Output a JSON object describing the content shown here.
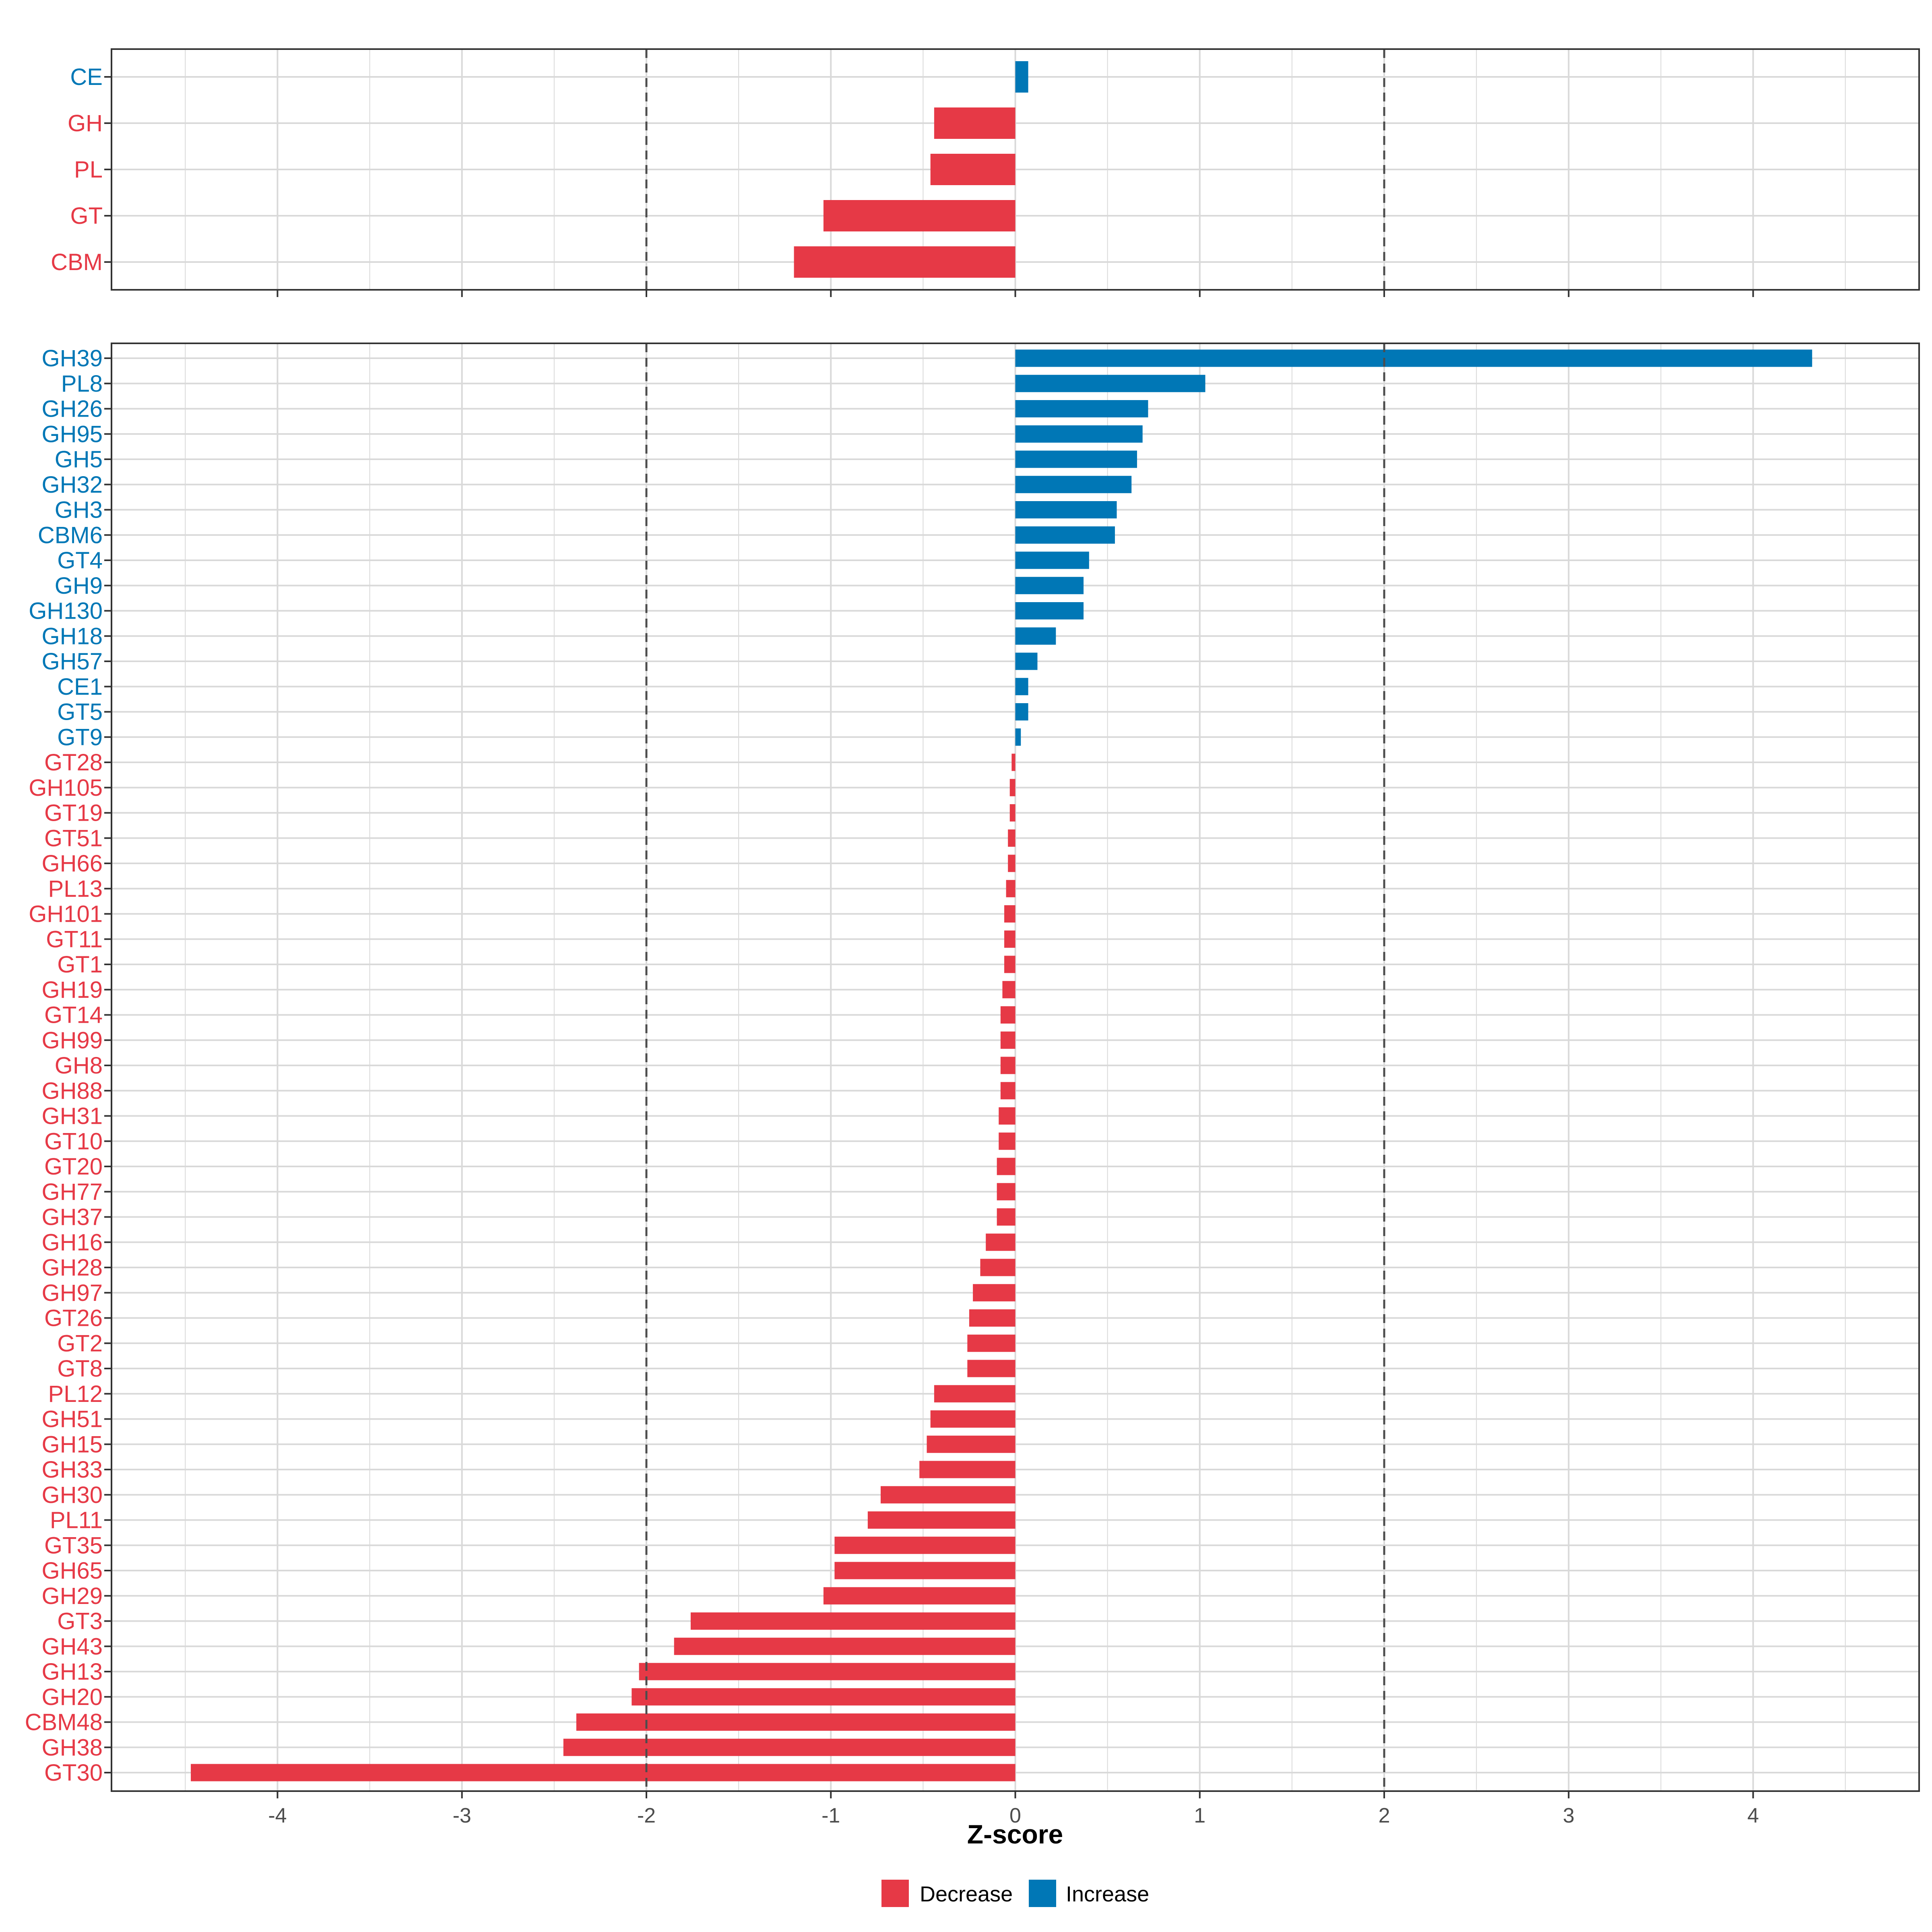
{
  "colors": {
    "decrease": "#E63946",
    "increase": "#0077B6",
    "grid": "#d9d9d9",
    "threshold": "#4d4d4d"
  },
  "chart_data": [
    {
      "type": "bar",
      "orientation": "horizontal",
      "panel": "top",
      "categories": [
        "CE",
        "GH",
        "PL",
        "GT",
        "CBM"
      ],
      "values": [
        0.07,
        -0.44,
        -0.46,
        -1.04,
        -1.2
      ],
      "xlim": [
        -4.9,
        4.9
      ],
      "thresholds": [
        -2,
        2
      ]
    },
    {
      "type": "bar",
      "orientation": "horizontal",
      "panel": "bottom",
      "categories": [
        "GH39",
        "PL8",
        "GH26",
        "GH95",
        "GH5",
        "GH32",
        "GH3",
        "CBM6",
        "GT4",
        "GH9",
        "GH130",
        "GH18",
        "GH57",
        "CE1",
        "GT5",
        "GT9",
        "GT28",
        "GH105",
        "GT19",
        "GT51",
        "GH66",
        "PL13",
        "GH101",
        "GT11",
        "GT1",
        "GH19",
        "GT14",
        "GH99",
        "GH8",
        "GH88",
        "GH31",
        "GT10",
        "GT20",
        "GH77",
        "GH37",
        "GH16",
        "GH28",
        "GH97",
        "GT26",
        "GT2",
        "GT8",
        "PL12",
        "GH51",
        "GH15",
        "GH33",
        "GH30",
        "PL11",
        "GT35",
        "GH65",
        "GH29",
        "GT3",
        "GH43",
        "GH13",
        "GH20",
        "CBM48",
        "GH38",
        "GT30"
      ],
      "values": [
        4.32,
        1.03,
        0.72,
        0.69,
        0.66,
        0.63,
        0.55,
        0.54,
        0.4,
        0.37,
        0.37,
        0.22,
        0.12,
        0.07,
        0.07,
        0.03,
        -0.02,
        -0.03,
        -0.03,
        -0.04,
        -0.04,
        -0.05,
        -0.06,
        -0.06,
        -0.06,
        -0.07,
        -0.08,
        -0.08,
        -0.08,
        -0.08,
        -0.09,
        -0.09,
        -0.1,
        -0.1,
        -0.1,
        -0.16,
        -0.19,
        -0.23,
        -0.25,
        -0.26,
        -0.26,
        -0.44,
        -0.46,
        -0.48,
        -0.52,
        -0.73,
        -0.8,
        -0.98,
        -0.98,
        -1.04,
        -1.76,
        -1.85,
        -2.04,
        -2.08,
        -2.38,
        -2.45,
        -4.47
      ],
      "xlim": [
        -4.9,
        4.9
      ],
      "thresholds": [
        -2,
        2
      ],
      "xticks": [
        -4,
        -3,
        -2,
        -1,
        0,
        1,
        2,
        3,
        4
      ],
      "xlabel": "Z-score"
    }
  ],
  "legend": {
    "decrease_label": "Decrease",
    "increase_label": "Increase"
  }
}
